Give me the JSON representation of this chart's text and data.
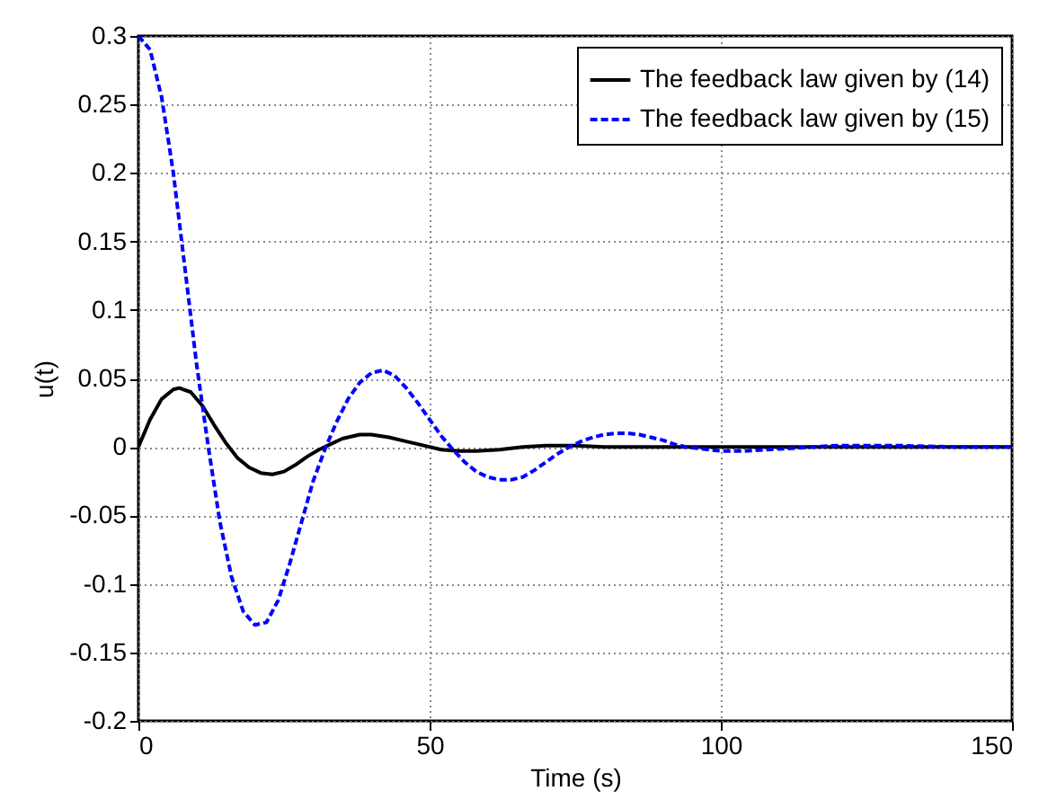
{
  "chart_data": {
    "type": "line",
    "xlabel": "Time (s)",
    "ylabel": "u(t)",
    "xlim": [
      0,
      150
    ],
    "xticks": [
      0,
      50,
      100,
      150
    ],
    "ylim": [
      -0.2,
      0.3
    ],
    "yticks": [
      -0.2,
      -0.15,
      -0.1,
      -0.05,
      0,
      0.05,
      0.1,
      0.15,
      0.2,
      0.25,
      0.3
    ],
    "grid": true,
    "legend": "top right",
    "marker": "none",
    "series": [
      {
        "name": "The feedback law given by (14)",
        "color": "#000000",
        "line_style": "solid",
        "x": [
          0,
          2,
          4,
          6,
          7,
          9,
          11,
          13,
          15,
          17,
          19,
          21,
          23,
          25,
          27,
          29,
          31,
          33,
          35,
          38,
          40,
          43,
          46,
          49,
          52,
          55,
          58,
          62,
          66,
          70,
          75,
          80,
          90,
          100,
          150
        ],
        "values": [
          0,
          0.02,
          0.035,
          0.042,
          0.043,
          0.04,
          0.03,
          0.016,
          0.003,
          -0.008,
          -0.015,
          -0.019,
          -0.02,
          -0.018,
          -0.013,
          -0.007,
          -0.002,
          0.002,
          0.006,
          0.009,
          0.009,
          0.007,
          0.004,
          0.001,
          -0.002,
          -0.003,
          -0.003,
          -0.002,
          0,
          0.001,
          0.001,
          0,
          0,
          0,
          0
        ]
      },
      {
        "name": "The feedback law given by (15)",
        "color": "#0000ff",
        "line_style": "dashed",
        "x": [
          0,
          2,
          4,
          6,
          8,
          10,
          12,
          14,
          16,
          18,
          20,
          22,
          24,
          26,
          28,
          30,
          32,
          34,
          36,
          38,
          40,
          42,
          44,
          46,
          48,
          50,
          52,
          54,
          56,
          58,
          60,
          62,
          64,
          66,
          68,
          70,
          72,
          74,
          76,
          78,
          80,
          82,
          84,
          86,
          88,
          90,
          92,
          94,
          96,
          98,
          100,
          104,
          108,
          112,
          116,
          120,
          130,
          140,
          150
        ],
        "values": [
          0.3,
          0.29,
          0.255,
          0.2,
          0.13,
          0.06,
          0,
          -0.055,
          -0.095,
          -0.12,
          -0.13,
          -0.128,
          -0.112,
          -0.085,
          -0.055,
          -0.025,
          -0.002,
          0.018,
          0.035,
          0.047,
          0.054,
          0.056,
          0.052,
          0.043,
          0.032,
          0.02,
          0.008,
          -0.002,
          -0.011,
          -0.018,
          -0.022,
          -0.024,
          -0.024,
          -0.022,
          -0.017,
          -0.011,
          -0.005,
          0,
          0.004,
          0.007,
          0.009,
          0.01,
          0.01,
          0.009,
          0.007,
          0.005,
          0.002,
          0,
          -0.001,
          -0.002,
          -0.003,
          -0.003,
          -0.002,
          -0.001,
          0,
          0.001,
          0.001,
          0,
          0
        ]
      }
    ]
  }
}
